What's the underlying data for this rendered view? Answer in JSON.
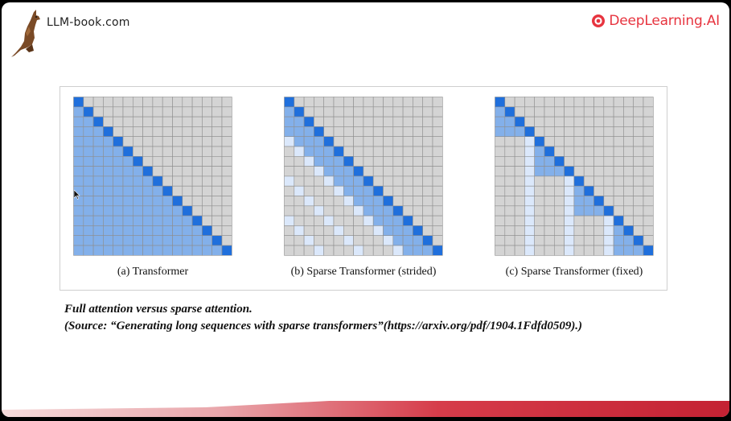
{
  "header": {
    "site": "LLM-book.com",
    "org": "DeepLearning.AI",
    "org_color": "#e7343f"
  },
  "figure": {
    "grid_size": 16,
    "colors": {
      "diagonal": "#1f6fdc",
      "attended": "#83b0ea",
      "strided_light": "#dbe8fb",
      "inactive": "#d4d4d4",
      "gridline": "#8e8e8e"
    },
    "panels": [
      {
        "caption": "(a) Transformer",
        "pattern": "full"
      },
      {
        "caption": "(b) Sparse Transformer (strided)",
        "pattern": "strided",
        "stride": 4
      },
      {
        "caption": "(c) Sparse Transformer (fixed)",
        "pattern": "fixed",
        "block": 4
      }
    ]
  },
  "caption": {
    "line1": "Full attention versus sparse attention.",
    "line2": "(Source: “Generating long sequences with sparse transformers”(https://arxiv.org/pdf/1904.1Fdfd0509).)"
  }
}
